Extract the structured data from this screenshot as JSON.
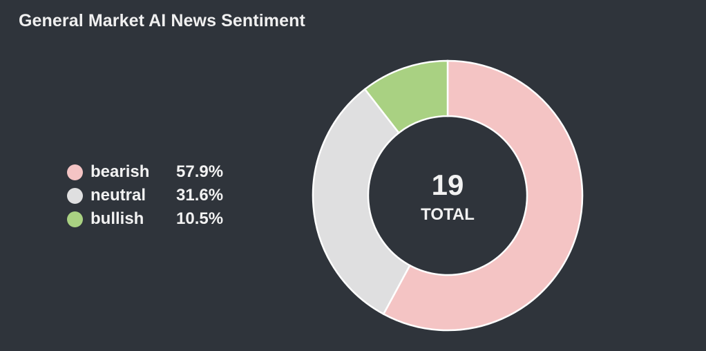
{
  "title": "General Market AI News Sentiment",
  "chart_data": {
    "type": "pie",
    "variant": "donut",
    "title": "General Market AI News Sentiment",
    "total": 19,
    "total_label": "TOTAL",
    "categories": [
      "bearish",
      "neutral",
      "bullish"
    ],
    "values": [
      11,
      6,
      2
    ],
    "percent_labels": [
      "57.9%",
      "31.6%",
      "10.5%"
    ],
    "colors": [
      "#f4c4c4",
      "#dfdfe0",
      "#a9d182"
    ],
    "legend_position": "left"
  },
  "legend": [
    {
      "label": "bearish",
      "value": "57.9%",
      "color": "#f4c4c4"
    },
    {
      "label": "neutral",
      "value": "31.6%",
      "color": "#dfdfe0"
    },
    {
      "label": "bullish",
      "value": "10.5%",
      "color": "#a9d182"
    }
  ],
  "colors": {
    "background": "#2f343b",
    "text": "#f2f2f2",
    "slice_border": "#ffffff"
  }
}
